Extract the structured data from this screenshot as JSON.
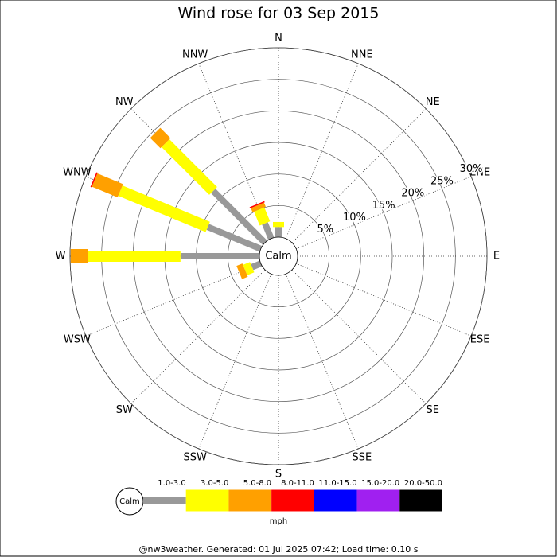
{
  "chart_data": {
    "type": "windrose",
    "title": "Wind rose for 03 Sep 2015",
    "categories": [
      "N",
      "NNE",
      "NE",
      "ENE",
      "E",
      "ESE",
      "SE",
      "SSE",
      "S",
      "SSW",
      "SW",
      "WSW",
      "W",
      "WNW",
      "NW",
      "NNW"
    ],
    "series": [
      {
        "name": "1.0-3.0",
        "color": "#999999",
        "values": [
          1.6,
          0,
          0,
          0,
          0,
          0,
          0,
          0,
          0,
          0,
          0,
          1.5,
          12.5,
          9.1,
          11.6,
          2.6
        ]
      },
      {
        "name": "3.0-5.0",
        "color": "#ffff00",
        "values": [
          0.8,
          0,
          0,
          0,
          0,
          0,
          0,
          0,
          0,
          0,
          0,
          1.2,
          14.7,
          15.0,
          10.7,
          2.4
        ]
      },
      {
        "name": "5.0-8.0",
        "color": "#ffa000",
        "values": [
          0,
          0,
          0,
          0,
          0,
          0,
          0,
          0,
          0,
          0,
          0,
          1.0,
          2.7,
          4.4,
          2.3,
          0.7
        ]
      },
      {
        "name": "8.0-11.0",
        "color": "#ff0000",
        "values": [
          0,
          0,
          0,
          0,
          0,
          0,
          0,
          0,
          0,
          0,
          0,
          0,
          0,
          0.2,
          0,
          0.2
        ]
      },
      {
        "name": "11.0-15.0",
        "color": "#0000ff",
        "values": [
          0,
          0,
          0,
          0,
          0,
          0,
          0,
          0,
          0,
          0,
          0,
          0,
          0,
          0,
          0,
          0
        ]
      },
      {
        "name": "15.0-20.0",
        "color": "#a020f0",
        "values": [
          0,
          0,
          0,
          0,
          0,
          0,
          0,
          0,
          0,
          0,
          0,
          0,
          0,
          0,
          0,
          0
        ]
      },
      {
        "name": "20.0-50.0",
        "color": "#000000",
        "values": [
          0,
          0,
          0,
          0,
          0,
          0,
          0,
          0,
          0,
          0,
          0,
          0,
          0,
          0,
          0,
          0
        ]
      }
    ],
    "ylim": [
      0,
      30
    ],
    "yticks": [
      {
        "value": 5,
        "label": "5%"
      },
      {
        "value": 10,
        "label": "10%"
      },
      {
        "value": 15,
        "label": "15%"
      },
      {
        "value": 20,
        "label": "20%"
      },
      {
        "value": 25,
        "label": "25%"
      },
      {
        "value": 30,
        "label": "30%"
      }
    ],
    "calm_label": "Calm",
    "legend_unit": "mph",
    "footer": "@nw3weather. Generated: 01 Jul 2025 07:42; Load time: 0.10 s"
  }
}
